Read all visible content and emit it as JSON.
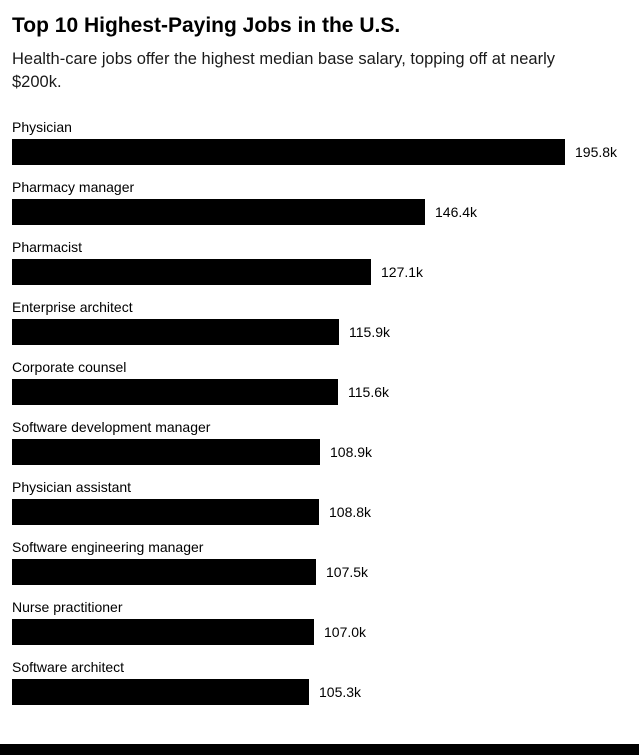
{
  "chart_data": {
    "type": "bar",
    "orientation": "horizontal",
    "title": "Top 10 Highest-Paying Jobs in the U.S.",
    "subtitle": "Health-care jobs offer the highest median base salary, topping off at nearly $200k.",
    "categories": [
      "Physician",
      "Pharmacy manager",
      "Pharmacist",
      "Enterprise architect",
      "Corporate counsel",
      "Software development manager",
      "Physician assistant",
      "Software engineering manager",
      "Nurse practitioner",
      "Software architect"
    ],
    "values": [
      195.8,
      146.4,
      127.1,
      115.9,
      115.6,
      108.9,
      108.8,
      107.5,
      107.0,
      105.3
    ],
    "value_labels": [
      "195.8k",
      "146.4k",
      "127.1k",
      "115.9k",
      "115.6k",
      "108.9k",
      "108.8k",
      "107.5k",
      "107.0k",
      "105.3k"
    ],
    "xlim": [
      0,
      195.8
    ],
    "bar_color": "#000000",
    "grid": false,
    "legend": "none"
  }
}
